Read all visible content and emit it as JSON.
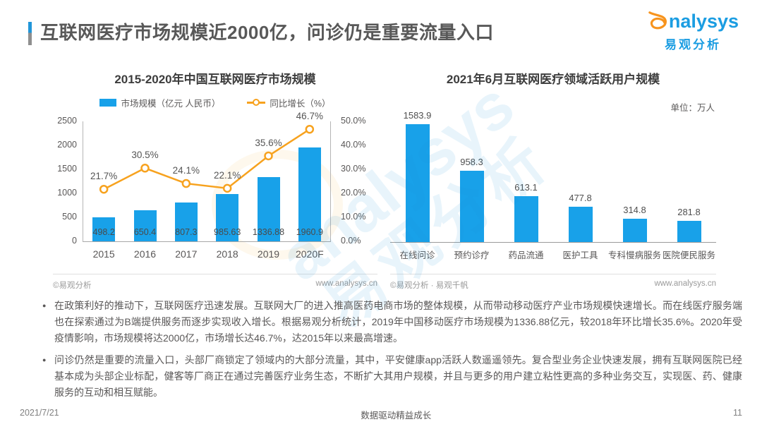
{
  "header": {
    "title": "互联网医疗市场规模近2000亿，问诊仍是重要流量入口",
    "logo_icon": "analysys-swirl",
    "logo_text": "nalysys",
    "logo_cn": "易观分析"
  },
  "watermark": {
    "line1": "analysys",
    "line2": "易观分析"
  },
  "chart_data": [
    {
      "type": "bar+line",
      "title": "2015-2020年中国互联网医疗市场规模",
      "categories": [
        "2015",
        "2016",
        "2017",
        "2018",
        "2019",
        "2020F"
      ],
      "series": [
        {
          "name": "市场规模（亿元 人民币）",
          "type": "bar",
          "values": [
            498.2,
            650.4,
            807.3,
            985.63,
            1336.88,
            1960.9
          ],
          "color": "#18a1e9"
        },
        {
          "name": "同比增长（%）",
          "type": "line",
          "values": [
            21.7,
            30.5,
            24.1,
            22.1,
            35.6,
            46.7
          ],
          "color": "#f7a21e"
        }
      ],
      "bar_labels": [
        "498.2",
        "650.4",
        "807.3",
        "985.63",
        "1336.88",
        "1960.9"
      ],
      "line_labels": [
        "21.7%",
        "30.5%",
        "24.1%",
        "22.1%",
        "35.6%",
        "46.7%"
      ],
      "y_left": {
        "ticks": [
          "0",
          "500",
          "1000",
          "1500",
          "2000",
          "2500"
        ],
        "max": 2500
      },
      "y_right": {
        "ticks": [
          "0.0%",
          "10.0%",
          "20.0%",
          "30.0%",
          "40.0%",
          "50.0%"
        ],
        "max": 50
      },
      "legend_position": "top",
      "grid": false,
      "source_left": "©易观分析",
      "source_right": "www.analysys.cn"
    },
    {
      "type": "bar",
      "title": "2021年6月互联网医疗领域活跃用户规模",
      "unit": "单位：万人",
      "categories": [
        "在线问诊",
        "预约诊疗",
        "药品流通",
        "医护工具",
        "专科慢病服务",
        "医院便民服务"
      ],
      "values": [
        1583.9,
        958.3,
        613.1,
        477.8,
        314.8,
        281.8
      ],
      "labels": [
        "1583.9",
        "958.3",
        "613.1",
        "477.8",
        "314.8",
        "281.8"
      ],
      "bar_color": "#18a1e9",
      "ylim": [
        0,
        1600
      ],
      "grid": false,
      "source_left": "©易观分析 · 易观千帆",
      "source_right": "www.analysys.cn"
    }
  ],
  "bullets": [
    "在政策利好的推动下，互联网医疗迅速发展。互联网大厂的进入推高医药电商市场的整体规模，从而带动移动医疗产业市场规模快速增长。而在线医疗服务端也在探索通过为B端提供服务而逐步实现收入增长。根据易观分析统计，2019年中国移动医疗市场规模为1336.88亿元，较2018年环比增长35.6%。2020年受疫情影响，市场规模将达2000亿，市场增长达46.7%，达2015年以来最高增速。",
    "问诊仍然是重要的流量入口，头部厂商锁定了领域内的大部分流量，其中，平安健康app活跃人数遥遥领先。复合型业务企业快速发展，拥有互联网医院已经基本成为头部企业标配，健客等厂商正在通过完善医疗业务生态，不断扩大其用户规模，并且与更多的用户建立粘性更高的多种业务交互，实现医、药、健康服务的互动和相互赋能。"
  ],
  "footer": {
    "date": "2021/7/21",
    "slogan": "数据驱动精益成长",
    "page_number": "11"
  }
}
